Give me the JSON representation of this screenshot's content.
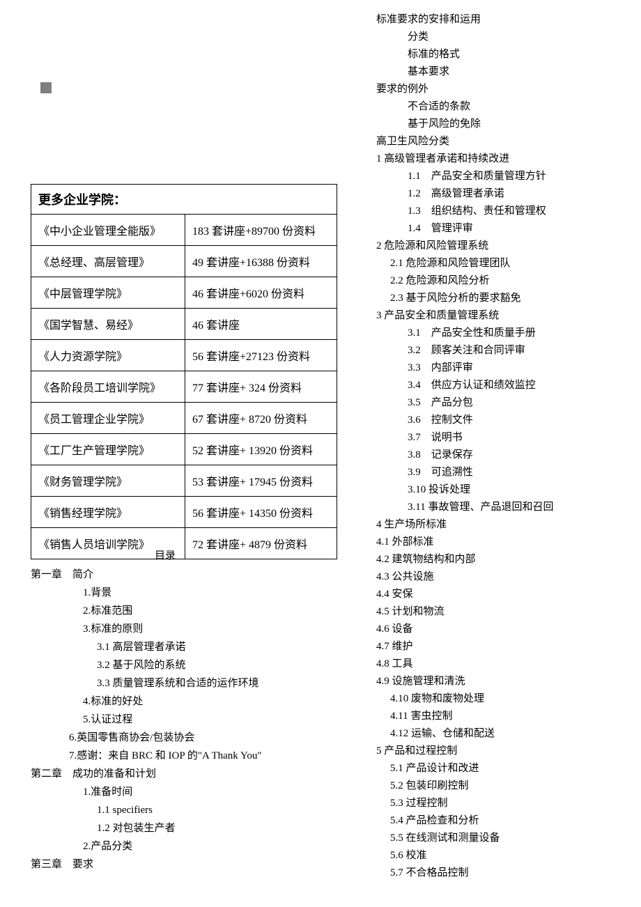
{
  "colors": {
    "background": "#ffffff",
    "text": "#000000",
    "border": "#000000",
    "gray_box": "#808080"
  },
  "typography": {
    "body_font": "SimSun",
    "body_size_pt": 11,
    "table_header_size_pt": 14,
    "table_cell_size_pt": 12
  },
  "table": {
    "header": "更多企业学院：",
    "rows": [
      {
        "name": "《中小企业管理全能版》",
        "detail": "183 套讲座+89700 份资料"
      },
      {
        "name": "《总经理、高层管理》",
        "detail": "49 套讲座+16388 份资料"
      },
      {
        "name": "《中层管理学院》",
        "detail": "46 套讲座+6020 份资料"
      },
      {
        "name": "《国学智慧、易经》",
        "detail": "46 套讲座"
      },
      {
        "name": "《人力资源学院》",
        "detail": "56 套讲座+27123 份资料"
      },
      {
        "name": "《各阶段员工培训学院》",
        "detail": "77 套讲座+ 324 份资料"
      },
      {
        "name": "《员工管理企业学院》",
        "detail": "67 套讲座+ 8720 份资料"
      },
      {
        "name": "《工厂生产管理学院》",
        "detail": "52 套讲座+ 13920 份资料"
      },
      {
        "name": "《财务管理学院》",
        "detail": "53 套讲座+ 17945 份资料"
      },
      {
        "name": "《销售经理学院》",
        "detail": "56 套讲座+ 14350 份资料"
      },
      {
        "name": "《销售人员培训学院》",
        "detail": "72 套讲座+ 4879 份资料"
      }
    ]
  },
  "toc_title": "目录",
  "toc_left": [
    {
      "text": "第一章　简介",
      "indent": "i0"
    },
    {
      "text": "1.背景",
      "indent": "i2"
    },
    {
      "text": "2.标准范围",
      "indent": "i2"
    },
    {
      "text": "3.标准的原则",
      "indent": "i2"
    },
    {
      "text": "3.1 高层管理者承诺",
      "indent": "i3"
    },
    {
      "text": "3.2 基于风险的系统",
      "indent": "i3"
    },
    {
      "text": "3.3 质量管理系统和合适的运作环境",
      "indent": "i3"
    },
    {
      "text": "4.标准的好处",
      "indent": "i2"
    },
    {
      "text": "5.认证过程",
      "indent": "i2"
    },
    {
      "text": "6.英国零售商协会/包装协会",
      "indent": "i1"
    },
    {
      "text": "7.感谢：来自 BRC 和 IOP 的\"A Thank You\"",
      "indent": "i1"
    },
    {
      "text": "第二章　成功的准备和计划",
      "indent": "i0"
    },
    {
      "text": "1.准备时间",
      "indent": "i2"
    },
    {
      "text": "1.1 specifiers",
      "indent": "i3"
    },
    {
      "text": "1.2 对包装生产者",
      "indent": "i3"
    },
    {
      "text": "2.产品分类",
      "indent": "i2"
    },
    {
      "text": "第三章　要求",
      "indent": "i0"
    }
  ],
  "toc_right": [
    {
      "text": "标准要求的安排和运用",
      "indent": "r0"
    },
    {
      "text": "分类",
      "indent": "r2"
    },
    {
      "text": "标准的格式",
      "indent": "r2"
    },
    {
      "text": "基本要求",
      "indent": "r2"
    },
    {
      "text": "要求的例外",
      "indent": "r0"
    },
    {
      "text": "不合适的条款",
      "indent": "r2"
    },
    {
      "text": "基于风险的免除",
      "indent": "r2"
    },
    {
      "text": "高卫生风险分类",
      "indent": "r0"
    },
    {
      "text": "1 高级管理者承诺和持续改进",
      "indent": "r0"
    },
    {
      "text": "1.1　产品安全和质量管理方针",
      "indent": "r2"
    },
    {
      "text": "1.2　高级管理者承诺",
      "indent": "r2"
    },
    {
      "text": "1.3　组织结构、责任和管理权",
      "indent": "r2"
    },
    {
      "text": "1.4　管理评审",
      "indent": "r2"
    },
    {
      "text": "2 危险源和风险管理系统",
      "indent": "r0"
    },
    {
      "text": "2.1 危险源和风险管理团队",
      "indent": "r1"
    },
    {
      "text": "2.2 危险源和风险分析",
      "indent": "r1"
    },
    {
      "text": "2.3 基于风险分析的要求豁免",
      "indent": "r1"
    },
    {
      "text": "3 产品安全和质量管理系统",
      "indent": "r0"
    },
    {
      "text": "3.1　产品安全性和质量手册",
      "indent": "r2"
    },
    {
      "text": "3.2　顾客关注和合同评审",
      "indent": "r2"
    },
    {
      "text": "3.3　内部评审",
      "indent": "r2"
    },
    {
      "text": "3.4　供应方认证和绩效监控",
      "indent": "r2"
    },
    {
      "text": "3.5　产品分包",
      "indent": "r2"
    },
    {
      "text": "3.6　控制文件",
      "indent": "r2"
    },
    {
      "text": "3.7　说明书",
      "indent": "r2"
    },
    {
      "text": "3.8　记录保存",
      "indent": "r2"
    },
    {
      "text": "3.9　可追溯性",
      "indent": "r2"
    },
    {
      "text": "3.10 投诉处理",
      "indent": "r2"
    },
    {
      "text": "3.11 事故管理、产品退回和召回",
      "indent": "r2"
    },
    {
      "text": "4 生产场所标准",
      "indent": "r0"
    },
    {
      "text": "4.1 外部标准",
      "indent": "r0"
    },
    {
      "text": "4.2 建筑物结构和内部",
      "indent": "r0"
    },
    {
      "text": "4.3 公共设施",
      "indent": "r0"
    },
    {
      "text": "4.4 安保",
      "indent": "r0"
    },
    {
      "text": "4.5 计划和物流",
      "indent": "r0"
    },
    {
      "text": "4.6 设备",
      "indent": "r0"
    },
    {
      "text": "4.7 维护",
      "indent": "r0"
    },
    {
      "text": "4.8 工具",
      "indent": "r0"
    },
    {
      "text": "4.9 设施管理和清洗",
      "indent": "r0"
    },
    {
      "text": "4.10 废物和废物处理",
      "indent": "r1"
    },
    {
      "text": "4.11 害虫控制",
      "indent": "r1"
    },
    {
      "text": "4.12 运输、仓储和配送",
      "indent": "r1"
    },
    {
      "text": "5 产品和过程控制",
      "indent": "r0"
    },
    {
      "text": "5.1 产品设计和改进",
      "indent": "r1"
    },
    {
      "text": "5.2 包装印刷控制",
      "indent": "r1"
    },
    {
      "text": "5.3 过程控制",
      "indent": "r1"
    },
    {
      "text": "5.4 产品检查和分析",
      "indent": "r1"
    },
    {
      "text": "5.5 在线测试和测量设备",
      "indent": "r1"
    },
    {
      "text": "5.6 校准",
      "indent": "r1"
    },
    {
      "text": "5.7 不合格品控制",
      "indent": "r1"
    }
  ]
}
